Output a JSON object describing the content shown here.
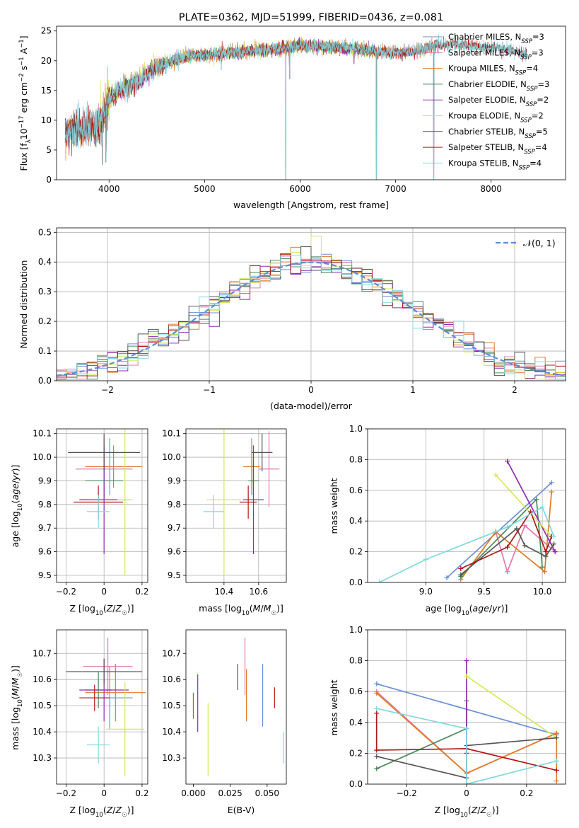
{
  "colors": {
    "Chabrier MILES": "#6a8fd8",
    "Salpeter MILES": "#e07ab0",
    "Kroupa MILES": "#e07b2a",
    "Chabrier ELODIE": "#4a8a5a",
    "Salpeter ELODIE": "#8e2bb0",
    "Kroupa ELODIE": "#d6e85a",
    "Chabrier STELIB": "#555555",
    "Salpeter STELIB": "#b01818",
    "Kroupa STELIB": "#80d8e0"
  },
  "chart_data": [
    {
      "id": "spectrum",
      "type": "line",
      "title": "PLATE=0362, MJD=51999, FIBERID=0436, z=0.081",
      "xlabel": "wavelength [Angstrom, rest frame]",
      "ylabel": "Flux [f_λ 10^{-17} erg cm^{-2} s^{-1} A^{-1}]",
      "xlim": [
        3450,
        8780
      ],
      "ylim": [
        0,
        25.8
      ],
      "xticks": [
        4000,
        5000,
        6000,
        7000,
        8000
      ],
      "yticks": [
        0,
        5,
        10,
        15,
        20,
        25
      ],
      "grid": false,
      "legend_position": "top-right",
      "continuum": {
        "wavelength": [
          3520,
          3700,
          3900,
          4000,
          4100,
          4200,
          4300,
          4450,
          4600,
          4800,
          5000,
          5200,
          5400,
          5600,
          5800,
          6000,
          6200,
          6400,
          6600,
          6800,
          7000,
          7200,
          7400,
          7600,
          7800,
          8000,
          8200,
          8380
        ],
        "flux": [
          8.0,
          8.6,
          9.2,
          13.5,
          15.0,
          15.5,
          16.5,
          18.5,
          19.5,
          20.8,
          21.0,
          21.2,
          21.5,
          21.8,
          22.0,
          22.5,
          22.4,
          22.2,
          22.0,
          21.5,
          21.3,
          21.5,
          22.5,
          22.8,
          22.5,
          22.2,
          21.8,
          21.0
        ]
      },
      "dips": [
        {
          "wavelength": 3930,
          "flux": 2.5
        },
        {
          "wavelength": 3968,
          "flux": 3.0
        },
        {
          "wavelength": 4340,
          "flux": 15.5
        },
        {
          "wavelength": 5175,
          "flux": 18.5
        },
        {
          "wavelength": 5850,
          "flux": 0.0
        },
        {
          "wavelength": 5890,
          "flux": 17.0
        },
        {
          "wavelength": 6563,
          "flux": 19.5
        },
        {
          "wavelength": 6800,
          "flux": 0.0
        },
        {
          "wavelength": 7400,
          "flux": 0.0
        }
      ],
      "series": [
        {
          "name": "Chabrier MILES, N_{SSP}=3",
          "base": "Chabrier MILES",
          "nssp": "3",
          "xmin": 3540,
          "xmax": 7450
        },
        {
          "name": "Salpeter MILES, N_{SSP}=3",
          "base": "Salpeter MILES",
          "nssp": "3",
          "xmin": 3540,
          "xmax": 7450
        },
        {
          "name": "Kroupa MILES, N_{SSP}=4",
          "base": "Kroupa MILES",
          "nssp": "4",
          "xmin": 3540,
          "xmax": 7450
        },
        {
          "name": "Chabrier ELODIE, N_{SSP}=3",
          "base": "Chabrier ELODIE",
          "nssp": "3",
          "xmin": 3900,
          "xmax": 6800
        },
        {
          "name": "Salpeter ELODIE, N_{SSP}=2",
          "base": "Salpeter ELODIE",
          "nssp": "2",
          "xmin": 3900,
          "xmax": 6800
        },
        {
          "name": "Kroupa ELODIE, N_{SSP}=2",
          "base": "Kroupa ELODIE",
          "nssp": "2",
          "xmin": 3900,
          "xmax": 6800
        },
        {
          "name": "Chabrier STELIB, N_{SSP}=5",
          "base": "Chabrier STELIB",
          "nssp": "5",
          "xmin": 3540,
          "xmax": 8380
        },
        {
          "name": "Salpeter STELIB, N_{SSP}=4",
          "base": "Salpeter STELIB",
          "nssp": "4",
          "xmin": 3540,
          "xmax": 8380
        },
        {
          "name": "Kroupa STELIB, N_{SSP}=4",
          "base": "Kroupa STELIB",
          "nssp": "4",
          "xmin": 3540,
          "xmax": 8380
        }
      ]
    },
    {
      "id": "residuals",
      "type": "line",
      "xlabel": "(data-model)/error",
      "ylabel": "Normed distribution",
      "xlim": [
        -2.5,
        2.5
      ],
      "ylim": [
        0,
        0.515
      ],
      "xticks": [
        -2,
        -1,
        0,
        1,
        2
      ],
      "yticks": [
        0.0,
        0.1,
        0.2,
        0.3,
        0.4,
        0.5
      ],
      "bin_width": 0.1,
      "grid": true,
      "legend_position": "top-right",
      "reference": {
        "name": "𝒩(0, 1)",
        "color": "#5b8ad8",
        "style": "dashed"
      },
      "histogram_order": [
        "Chabrier MILES",
        "Salpeter MILES",
        "Kroupa MILES",
        "Chabrier ELODIE",
        "Salpeter ELODIE",
        "Kroupa ELODIE",
        "Chabrier STELIB",
        "Salpeter STELIB",
        "Kroupa STELIB"
      ]
    },
    {
      "id": "age_vs_z",
      "type": "scatter",
      "xlabel": "Z [log10(Z/Z☉)]",
      "ylabel": "age  [log10(age/yr)]",
      "xlim": [
        -0.25,
        0.23
      ],
      "ylim": [
        9.47,
        10.12
      ],
      "xticks": [
        -0.2,
        0.0,
        0.2
      ],
      "yticks": [
        9.5,
        9.6,
        9.7,
        9.8,
        9.9,
        10.0,
        10.1
      ],
      "grid": true,
      "points": [
        {
          "model": "Chabrier MILES",
          "x": 0.03,
          "xerr": 0.12,
          "y": 9.96,
          "yerr": 0.12
        },
        {
          "model": "Salpeter MILES",
          "x": 0.0,
          "xerr": 0.15,
          "y": 9.95,
          "yerr": 0.13
        },
        {
          "model": "Kroupa MILES",
          "x": 0.05,
          "xerr": 0.15,
          "y": 9.96,
          "yerr": 0.09
        },
        {
          "model": "Chabrier ELODIE",
          "x": 0.0,
          "xerr": 0.1,
          "y": 9.9,
          "yerr": 0.07
        },
        {
          "model": "Salpeter ELODIE",
          "x": 0.0,
          "xerr": 0.13,
          "y": 9.82,
          "yerr": 0.23
        },
        {
          "model": "Kroupa ELODIE",
          "x": 0.11,
          "xerr": 0.04,
          "y": 9.82,
          "yerr": 0.32
        },
        {
          "model": "Chabrier STELIB",
          "x": 0.0,
          "xerr": 0.19,
          "y": 10.02,
          "yerr": 0.08
        },
        {
          "model": "Salpeter STELIB",
          "x": -0.03,
          "xerr": 0.13,
          "y": 9.81,
          "yerr": 0.07
        },
        {
          "model": "Kroupa STELIB",
          "x": -0.03,
          "xerr": 0.06,
          "y": 9.77,
          "yerr": 0.07
        }
      ]
    },
    {
      "id": "age_vs_mass",
      "type": "scatter",
      "xlabel": "mass [log10(M/M☉)]",
      "ylabel": "",
      "xlim": [
        10.18,
        10.76
      ],
      "ylim": [
        9.47,
        10.12
      ],
      "xticks": [
        10.4,
        10.6
      ],
      "yticks": [
        9.5,
        9.6,
        9.7,
        9.8,
        9.9,
        10.0,
        10.1
      ],
      "grid": true,
      "points": [
        {
          "model": "Chabrier MILES",
          "x": 10.56,
          "xerr": 0.02,
          "y": 9.96,
          "yerr": 0.12
        },
        {
          "model": "Salpeter MILES",
          "x": 10.66,
          "xerr": 0.06,
          "y": 9.95,
          "yerr": 0.16
        },
        {
          "model": "Kroupa MILES",
          "x": 10.56,
          "xerr": 0.05,
          "y": 9.96,
          "yerr": 0.09
        },
        {
          "model": "Chabrier ELODIE",
          "x": 10.57,
          "xerr": 0.03,
          "y": 9.9,
          "yerr": 0.07
        },
        {
          "model": "Salpeter ELODIE",
          "x": 10.57,
          "xerr": 0.06,
          "y": 9.82,
          "yerr": 0.23
        },
        {
          "model": "Kroupa ELODIE",
          "x": 10.4,
          "xerr": 0.1,
          "y": 9.82,
          "yerr": 0.32
        },
        {
          "model": "Chabrier STELIB",
          "x": 10.62,
          "xerr": 0.06,
          "y": 10.02,
          "yerr": 0.08
        },
        {
          "model": "Salpeter STELIB",
          "x": 10.54,
          "xerr": 0.05,
          "y": 9.81,
          "yerr": 0.07
        },
        {
          "model": "Kroupa STELIB",
          "x": 10.34,
          "xerr": 0.06,
          "y": 9.77,
          "yerr": 0.07
        }
      ]
    },
    {
      "id": "weight_vs_age",
      "type": "line",
      "xlabel": "age  [log10(age/yr)]",
      "ylabel": "mass weight",
      "xlim": [
        8.5,
        10.2
      ],
      "ylim": [
        0,
        1.0
      ],
      "xticks": [
        9.0,
        9.5,
        10.0
      ],
      "yticks": [
        0.0,
        0.2,
        0.4,
        0.6,
        0.8,
        1.0
      ],
      "grid": true,
      "series": [
        {
          "model": "Chabrier MILES",
          "x": [
            9.18,
            10.08
          ],
          "y": [
            0.03,
            0.65
          ]
        },
        {
          "model": "Salpeter MILES",
          "x": [
            9.6,
            9.7,
            9.85,
            10.11
          ],
          "y": [
            0.33,
            0.07,
            0.37,
            0.2
          ]
        },
        {
          "model": "Kroupa MILES",
          "x": [
            9.3,
            9.6,
            10.02,
            10.08
          ],
          "y": [
            0.02,
            0.33,
            0.07,
            0.59
          ]
        },
        {
          "model": "Chabrier ELODIE",
          "x": [
            9.3,
            9.95,
            10.0
          ],
          "y": [
            0.04,
            0.54,
            0.1
          ]
        },
        {
          "model": "Salpeter ELODIE",
          "x": [
            9.7,
            10.11
          ],
          "y": [
            0.79,
            0.2
          ]
        },
        {
          "model": "Kroupa ELODIE",
          "x": [
            9.6,
            10.08
          ],
          "y": [
            0.7,
            0.3
          ]
        },
        {
          "model": "Chabrier STELIB",
          "x": [
            9.3,
            9.78,
            9.85,
            10.03,
            10.1
          ],
          "y": [
            0.05,
            0.35,
            0.24,
            0.17,
            0.25
          ]
        },
        {
          "model": "Salpeter STELIB",
          "x": [
            9.3,
            9.7,
            9.9,
            10.03,
            10.08
          ],
          "y": [
            0.09,
            0.23,
            0.46,
            0.2,
            0.3
          ]
        },
        {
          "model": "Kroupa STELIB",
          "x": [
            8.6,
            9.0,
            9.7,
            10.0,
            10.1
          ],
          "y": [
            0.0,
            0.15,
            0.36,
            0.49,
            0.3
          ]
        }
      ]
    },
    {
      "id": "mass_vs_z",
      "type": "scatter",
      "xlabel": "Z [log10(Z/Z☉)]",
      "ylabel": "mass [log10(M/M☉)]",
      "xlim": [
        -0.25,
        0.23
      ],
      "ylim": [
        10.2,
        10.79
      ],
      "xticks": [
        -0.2,
        0.0,
        0.2
      ],
      "yticks": [
        10.3,
        10.4,
        10.5,
        10.6,
        10.7
      ],
      "grid": true,
      "points": [
        {
          "model": "Chabrier MILES",
          "x": 0.03,
          "xerr": 0.12,
          "y": 10.53,
          "yerr": 0.12
        },
        {
          "model": "Salpeter MILES",
          "x": 0.02,
          "xerr": 0.13,
          "y": 10.65,
          "yerr": 0.11
        },
        {
          "model": "Kroupa MILES",
          "x": 0.06,
          "xerr": 0.16,
          "y": 10.55,
          "yerr": 0.11
        },
        {
          "model": "Chabrier ELODIE",
          "x": -0.03,
          "xerr": 0.07,
          "y": 10.56,
          "yerr": 0.07
        },
        {
          "model": "Salpeter ELODIE",
          "x": 0.0,
          "xerr": 0.13,
          "y": 10.56,
          "yerr": 0.12
        },
        {
          "model": "Kroupa ELODIE",
          "x": 0.11,
          "xerr": 0.1,
          "y": 10.41,
          "yerr": 0.18
        },
        {
          "model": "Chabrier STELIB",
          "x": 0.0,
          "xerr": 0.2,
          "y": 10.63,
          "yerr": 0.05
        },
        {
          "model": "Salpeter STELIB",
          "x": -0.05,
          "xerr": 0.08,
          "y": 10.53,
          "yerr": 0.05
        },
        {
          "model": "Kroupa STELIB",
          "x": -0.03,
          "xerr": 0.06,
          "y": 10.35,
          "yerr": 0.07
        }
      ]
    },
    {
      "id": "mass_vs_ebv",
      "type": "scatter",
      "xlabel": "E(B-V)",
      "ylabel": "",
      "xlim": [
        -0.005,
        0.063
      ],
      "ylim": [
        10.2,
        10.79
      ],
      "xticks": [
        0.0,
        0.025,
        0.05
      ],
      "yticks": [
        10.3,
        10.4,
        10.5,
        10.6,
        10.7
      ],
      "grid": false,
      "points": [
        {
          "model": "Chabrier MILES",
          "x": 0.047,
          "xerr": 0.0,
          "y": 10.54,
          "yerr": 0.12
        },
        {
          "model": "Salpeter MILES",
          "x": 0.035,
          "xerr": 0.0,
          "y": 10.65,
          "yerr": 0.11
        },
        {
          "model": "Kroupa MILES",
          "x": 0.036,
          "xerr": 0.0,
          "y": 10.54,
          "yerr": 0.1
        },
        {
          "model": "Chabrier ELODIE",
          "x": 0.0,
          "xerr": 0.0,
          "y": 10.5,
          "yerr": 0.05
        },
        {
          "model": "Salpeter ELODIE",
          "x": 0.003,
          "xerr": 0.0,
          "y": 10.51,
          "yerr": 0.11
        },
        {
          "model": "Kroupa ELODIE",
          "x": 0.01,
          "xerr": 0.0,
          "y": 10.37,
          "yerr": 0.14
        },
        {
          "model": "Chabrier STELIB",
          "x": 0.03,
          "xerr": 0.0,
          "y": 10.61,
          "yerr": 0.05
        },
        {
          "model": "Salpeter STELIB",
          "x": 0.055,
          "xerr": 0.0,
          "y": 10.53,
          "yerr": 0.04
        },
        {
          "model": "Kroupa STELIB",
          "x": 0.061,
          "xerr": 0.0,
          "y": 10.34,
          "yerr": 0.06
        }
      ]
    },
    {
      "id": "weight_vs_z",
      "type": "line",
      "xlabel": "Z [log10(Z/Z☉)]",
      "ylabel": "mass weight",
      "xlim": [
        -0.33,
        0.33
      ],
      "ylim": [
        0,
        1.0
      ],
      "xticks": [
        -0.2,
        0.0,
        0.2
      ],
      "yticks": [
        0.0,
        0.2,
        0.4,
        0.6,
        0.8,
        1.0
      ],
      "grid": true,
      "series": [
        {
          "model": "Chabrier MILES",
          "x": [
            -0.3,
            0.3
          ],
          "y": [
            0.65,
            0.32
          ]
        },
        {
          "model": "Salpeter MILES",
          "x": [
            -0.3,
            0.0,
            0.3
          ],
          "y": [
            0.6,
            0.07,
            0.33
          ]
        },
        {
          "model": "Kroupa MILES",
          "x": [
            -0.3,
            0.0,
            0.3,
            0.3
          ],
          "y": [
            0.59,
            0.07,
            0.33,
            0.02
          ]
        },
        {
          "model": "Chabrier ELODIE",
          "x": [
            -0.3,
            0.0,
            0.0
          ],
          "y": [
            0.1,
            0.36,
            0.54
          ]
        },
        {
          "model": "Salpeter ELODIE",
          "x": [
            0.0,
            0.0
          ],
          "y": [
            0.8,
            0.2
          ]
        },
        {
          "model": "Kroupa ELODIE",
          "x": [
            0.0,
            0.3
          ],
          "y": [
            0.7,
            0.3
          ]
        },
        {
          "model": "Chabrier STELIB",
          "x": [
            -0.3,
            0.0,
            0.0,
            0.3
          ],
          "y": [
            0.18,
            0.04,
            0.25,
            0.3
          ]
        },
        {
          "model": "Salpeter STELIB",
          "x": [
            -0.3,
            -0.3,
            0.0,
            0.3
          ],
          "y": [
            0.46,
            0.22,
            0.23,
            0.09
          ]
        },
        {
          "model": "Kroupa STELIB",
          "x": [
            -0.3,
            0.0,
            0.0,
            0.3
          ],
          "y": [
            0.49,
            0.36,
            0.0,
            0.15
          ]
        }
      ]
    }
  ]
}
